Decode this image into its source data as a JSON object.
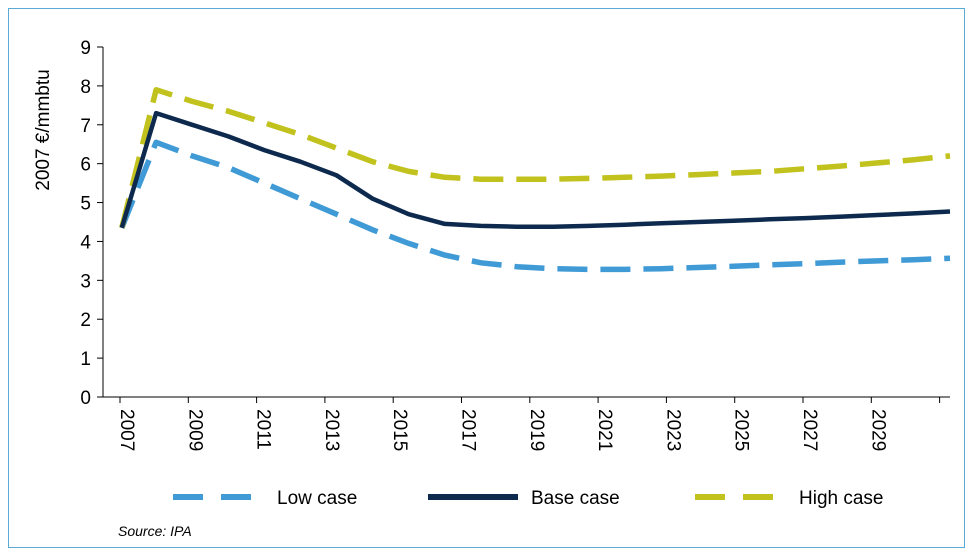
{
  "chart_data": {
    "type": "line",
    "ylabel": "2007 €/mmbtu",
    "xlabel": "",
    "ylim": [
      0,
      9
    ],
    "yticks": [
      0,
      1,
      2,
      3,
      4,
      5,
      6,
      7,
      8,
      9
    ],
    "xlim": [
      2007,
      2030
    ],
    "xtick_labels": [
      "2007",
      "2009",
      "2011",
      "2013",
      "2015",
      "2017",
      "2019",
      "2021",
      "2023",
      "2025",
      "2027",
      "2029"
    ],
    "x": [
      2007,
      2008,
      2009,
      2010,
      2011,
      2012,
      2013,
      2014,
      2015,
      2016,
      2017,
      2018,
      2019,
      2020,
      2021,
      2022,
      2023,
      2024,
      2025,
      2026,
      2027,
      2028,
      2029,
      2030
    ],
    "series": [
      {
        "name": "Low case",
        "color": "#3f9ad6",
        "dash": "dashed",
        "values": [
          4.35,
          6.55,
          6.2,
          5.9,
          5.5,
          5.1,
          4.7,
          4.3,
          3.95,
          3.65,
          3.45,
          3.35,
          3.3,
          3.28,
          3.28,
          3.3,
          3.33,
          3.36,
          3.4,
          3.43,
          3.47,
          3.5,
          3.53,
          3.57
        ]
      },
      {
        "name": "Base case",
        "color": "#0d2a4e",
        "dash": "solid",
        "values": [
          4.35,
          7.3,
          7.0,
          6.7,
          6.35,
          6.05,
          5.7,
          5.1,
          4.7,
          4.45,
          4.4,
          4.38,
          4.38,
          4.4,
          4.43,
          4.47,
          4.5,
          4.53,
          4.57,
          4.6,
          4.64,
          4.68,
          4.72,
          4.77
        ]
      },
      {
        "name": "High case",
        "color": "#c2c21e",
        "dash": "dashed",
        "values": [
          4.35,
          7.9,
          7.6,
          7.35,
          7.05,
          6.75,
          6.4,
          6.05,
          5.8,
          5.65,
          5.6,
          5.6,
          5.6,
          5.62,
          5.65,
          5.68,
          5.72,
          5.76,
          5.8,
          5.87,
          5.94,
          6.02,
          6.1,
          6.2
        ]
      }
    ],
    "grid": false,
    "legend": "bottom"
  },
  "source": "Source: IPA"
}
